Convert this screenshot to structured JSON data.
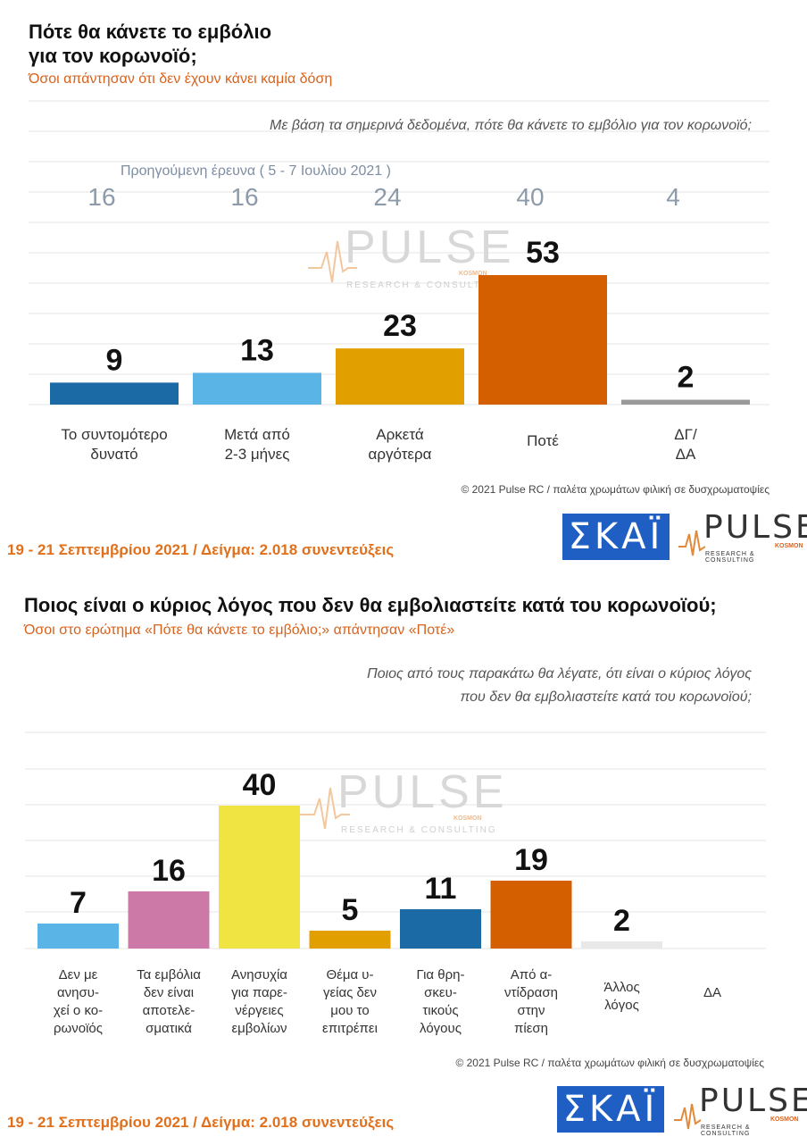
{
  "chart1": {
    "title_line1": "Πότε θα κάνετε το εμβόλιο",
    "title_line2": "για τον κορωνοϊό;",
    "subtitle": "Όσοι απάντησαν ότι δεν έχουν κάνει καμία δόση",
    "question": "Με βάση τα σημερινά δεδομένα, πότε θα κάνετε το εμβόλιο για τον κορωνοϊό;",
    "previous_survey_label": "Προηγούμενη έρευνα  ( 5 - 7 Ιουλίου 2021 )",
    "copyright": "© 2021 Pulse RC  /  παλέτα χρωμάτων φιλική σε δυσχρωματοψίες",
    "footer": "19 - 21 Σεπτεμβρίου 2021  /  Δείγμα:  2.018 συνεντεύξεις"
  },
  "chart2": {
    "title": "Ποιος είναι ο κύριος λόγος που δεν θα εμβολιαστείτε κατά του κορωνοϊού;",
    "subtitle": "Όσοι στο ερώτημα «Πότε θα κάνετε το εμβόλιο;» απάντησαν «Ποτέ»",
    "question_line1": "Ποιος από τους παρακάτω θα λέγατε, ότι είναι ο κύριος λόγος",
    "question_line2": "που δεν θα εμβολιαστείτε κατά του κορωνοϊού;",
    "copyright": "© 2021 Pulse RC  /  παλέτα χρωμάτων φιλική σε δυσχρωματοψίες",
    "footer": "19 - 21 Σεπτεμβρίου 2021  /  Δείγμα:  2.018 συνεντεύξεις"
  },
  "watermark": {
    "word": "PULSE",
    "sub": "RESEARCH & CONSULTING",
    "kosmon": "KOSMON"
  },
  "logos": {
    "skai": "ΣΚΑΪ",
    "pulse": "PULSE",
    "pulse_sub": "RESEARCH & CONSULTING",
    "pulse_kosmon": "KOSMON"
  },
  "chart_data": [
    {
      "type": "bar",
      "categories": [
        [
          "Το συντομότερο",
          "δυνατό"
        ],
        [
          "Μετά από",
          "2-3 μήνες"
        ],
        [
          "Αρκετά",
          "αργότερα"
        ],
        [
          "Ποτέ"
        ],
        [
          "ΔΓ/",
          "ΔΑ"
        ]
      ],
      "values": [
        9,
        13,
        23,
        53,
        2
      ],
      "previous_values": [
        16,
        16,
        24,
        40,
        4
      ],
      "colors": [
        "#1b6aa6",
        "#5bb4e6",
        "#e29f00",
        "#d35f00",
        "#9a9a9a"
      ],
      "ylim": [
        0,
        60
      ],
      "grid": true
    },
    {
      "type": "bar",
      "categories": [
        [
          "Δεν με",
          "ανησυ-",
          "χεί ο κο-",
          "ρωνοϊός"
        ],
        [
          "Τα εμβόλια",
          "δεν είναι",
          "αποτελε-",
          "σματικά"
        ],
        [
          "Ανησυχία",
          "για παρε-",
          "νέργειες",
          "εμβολίων"
        ],
        [
          "Θέμα υ-",
          "γείας δεν",
          "μου το",
          "επιτρέπει"
        ],
        [
          "Για θρη-",
          "σκευ-",
          "τικούς",
          "λόγους"
        ],
        [
          "Από α-",
          "ντίδραση",
          "στην",
          "πίεση"
        ],
        [
          "Άλλος",
          "λόγος"
        ],
        [
          "ΔΑ"
        ]
      ],
      "values": [
        7,
        16,
        40,
        5,
        11,
        19,
        2,
        null
      ],
      "colors": [
        "#5bb4e6",
        "#cc79a7",
        "#f0e442",
        "#e29f00",
        "#1b6aa6",
        "#d35f00",
        "#e8e8e8",
        "#cccccc"
      ],
      "ylim": [
        0,
        50
      ],
      "grid": true
    }
  ]
}
